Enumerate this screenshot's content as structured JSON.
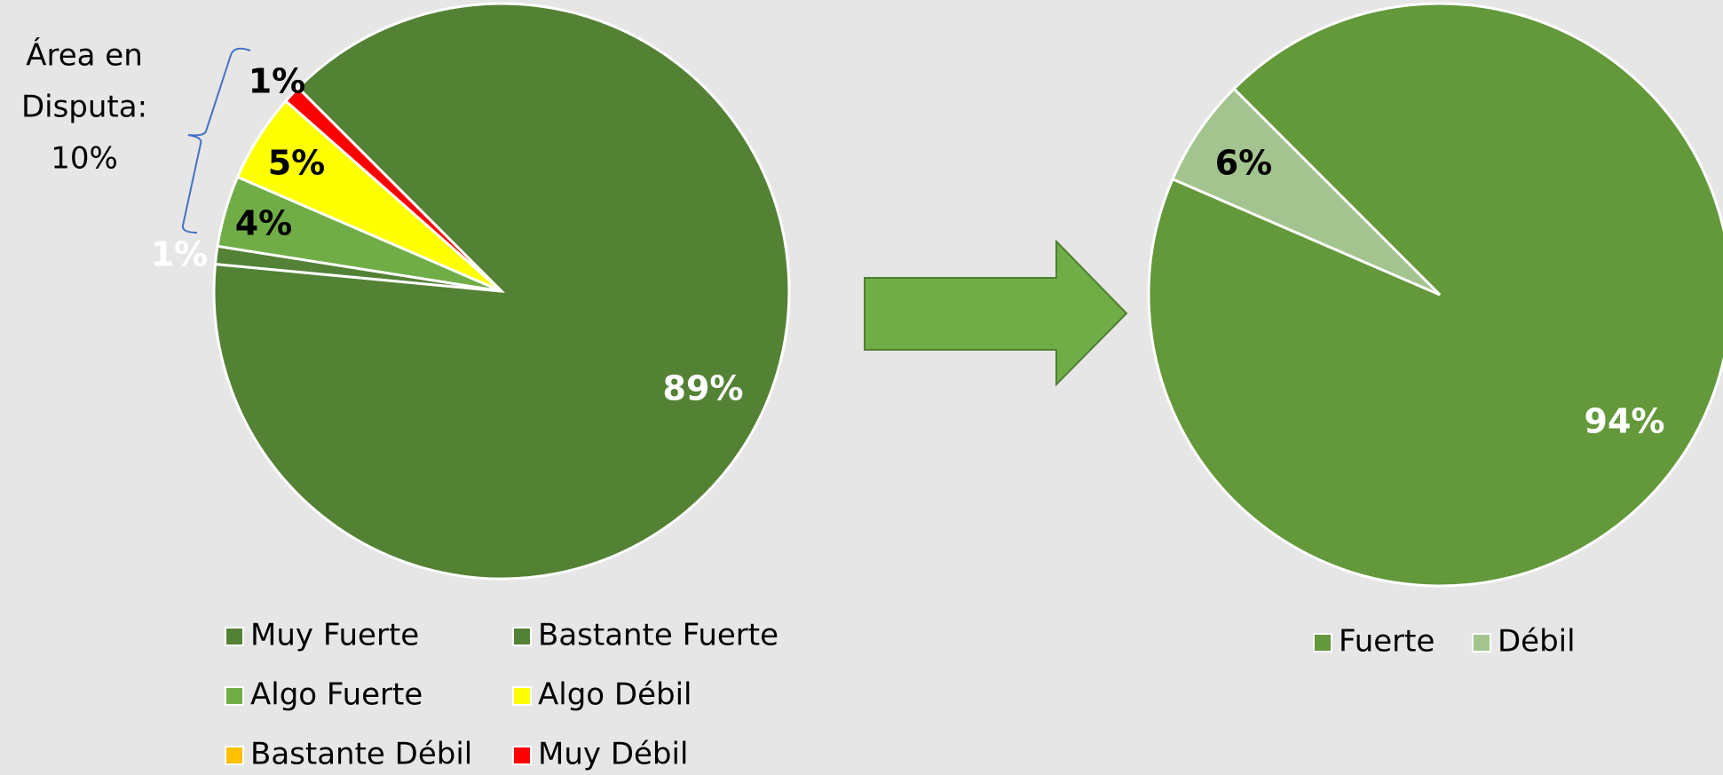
{
  "chart_data": [
    {
      "type": "pie",
      "categories": [
        "Muy Fuerte",
        "Bastante Fuerte",
        "Algo Fuerte",
        "Algo Débil",
        "Bastante Débil",
        "Muy Débil"
      ],
      "values": [
        89,
        1,
        4,
        5,
        0,
        1
      ],
      "value_labels": [
        "89%",
        "1%",
        "4%",
        "5%",
        null,
        "1%"
      ],
      "colors": [
        "#548235",
        "#538135",
        "#70ad47",
        "#ffff00",
        "#ffc000",
        "#ff0000"
      ],
      "annotation": [
        "Área en",
        "Disputa:",
        "10%"
      ]
    },
    {
      "type": "pie",
      "categories": [
        "Fuerte",
        "Débil"
      ],
      "values": [
        94,
        6
      ],
      "value_labels": [
        "94%",
        "6%"
      ],
      "colors": [
        "#63983b",
        "#a3c48f"
      ]
    }
  ]
}
